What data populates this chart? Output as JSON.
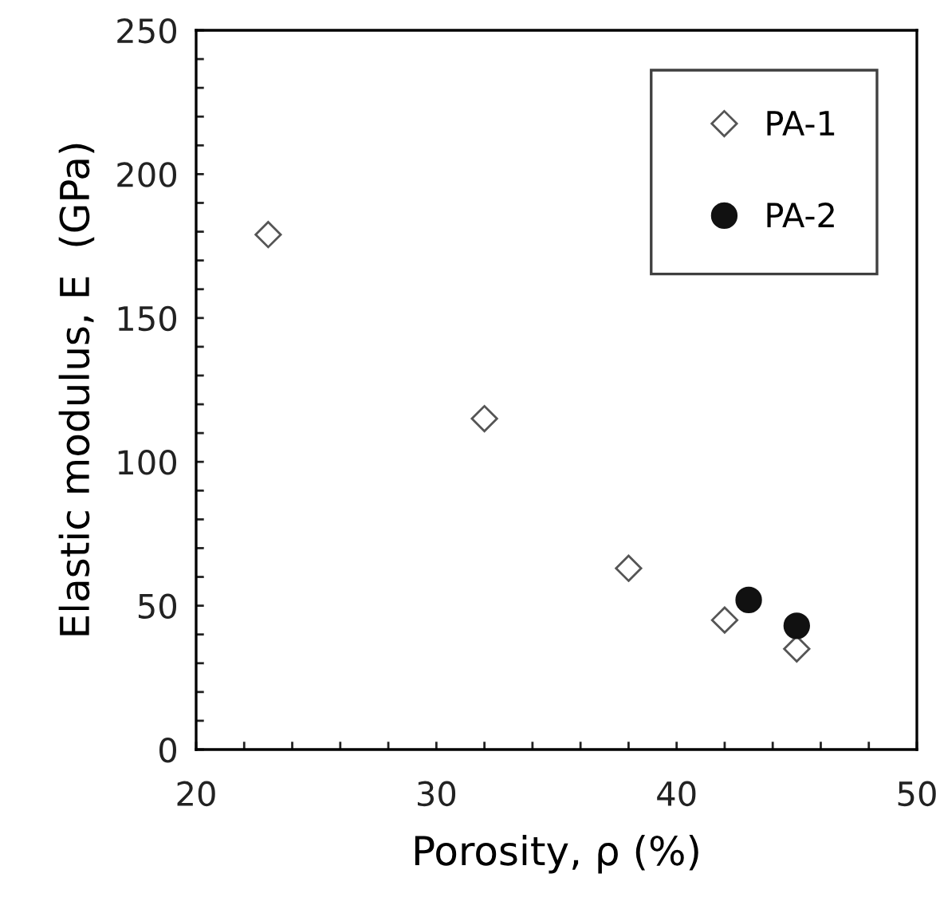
{
  "chart_data": {
    "type": "scatter",
    "xlabel": "Porosity, ρ (%)",
    "ylabel": "Elastic modulus, E  (GPa)",
    "xlim": [
      20,
      50
    ],
    "ylim": [
      0,
      250
    ],
    "xticks": [
      20,
      {
        "value": 22,
        "label": null
      },
      {
        "value": 24,
        "label": null
      },
      {
        "value": 26,
        "label": null
      },
      {
        "value": 28,
        "label": null
      },
      30,
      {
        "value": 32,
        "label": null
      },
      {
        "value": 34,
        "label": null
      },
      {
        "value": 36,
        "label": null
      },
      {
        "value": 38,
        "label": null
      },
      40,
      {
        "value": 42,
        "label": null
      },
      {
        "value": 44,
        "label": null
      },
      {
        "value": 46,
        "label": null
      },
      {
        "value": 48,
        "label": null
      },
      50
    ],
    "yticks": [
      0,
      {
        "value": 10,
        "label": null
      },
      {
        "value": 20,
        "label": null
      },
      {
        "value": 30,
        "label": null
      },
      {
        "value": 40,
        "label": null
      },
      50,
      {
        "value": 60,
        "label": null
      },
      {
        "value": 70,
        "label": null
      },
      {
        "value": 80,
        "label": null
      },
      {
        "value": 90,
        "label": null
      },
      100,
      {
        "value": 110,
        "label": null
      },
      {
        "value": 120,
        "label": null
      },
      {
        "value": 130,
        "label": null
      },
      {
        "value": 140,
        "label": null
      },
      150,
      {
        "value": 160,
        "label": null
      },
      {
        "value": 170,
        "label": null
      },
      {
        "value": 180,
        "label": null
      },
      {
        "value": 190,
        "label": null
      },
      200,
      {
        "value": 210,
        "label": null
      },
      {
        "value": 220,
        "label": null
      },
      {
        "value": 230,
        "label": null
      },
      {
        "value": 240,
        "label": null
      },
      250
    ],
    "grid": false,
    "legend": "top right",
    "series": [
      {
        "name": "PA-1",
        "color": "#ffffff",
        "marker": "diamond",
        "x": [
          23,
          32,
          38,
          42,
          45
        ],
        "values": [
          179,
          115,
          63,
          45,
          35
        ]
      },
      {
        "name": "PA-2",
        "color": "#111111",
        "marker": "circle",
        "x": [
          43,
          45
        ],
        "values": [
          52,
          43
        ]
      }
    ]
  }
}
